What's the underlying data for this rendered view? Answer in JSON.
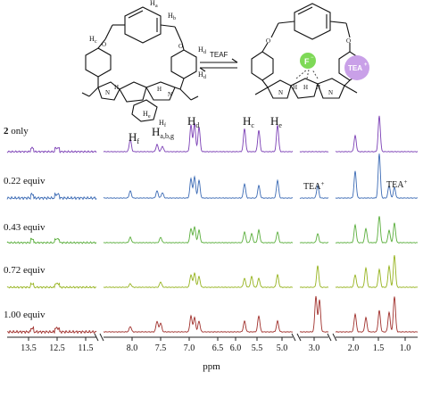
{
  "scheme": {
    "reagent": "TEAF",
    "fluoride_label": "F",
    "fluoride_charge": "−",
    "cation_label": "TEA",
    "cation_charge": "+",
    "atom_labels": [
      "H",
      "H",
      "H",
      "H",
      "H",
      "H",
      "H",
      "H",
      "H",
      "H",
      "H",
      "H",
      "N",
      "N",
      "N",
      "N",
      "O",
      "O",
      "O",
      "O"
    ],
    "proton_labels": {
      "ha": "a",
      "hb": "b",
      "hc": "c",
      "hd": "d",
      "he": "e",
      "hf": "f"
    },
    "colors": {
      "fluoride": "#7ed957",
      "cation": "#c9a0e8"
    }
  },
  "spectra": {
    "rows": [
      {
        "label_bold": "2",
        "label_rest": " only",
        "color": "#7b3fb5"
      },
      {
        "label_bold": "",
        "label_rest": "0.22 equiv",
        "color": "#3c6bb5"
      },
      {
        "label_bold": "",
        "label_rest": "0.43 equiv",
        "color": "#5aae3c"
      },
      {
        "label_bold": "",
        "label_rest": "0.72 equiv",
        "color": "#96b31e"
      },
      {
        "label_bold": "",
        "label_rest": "1.00 equiv",
        "color": "#a0302c"
      }
    ],
    "peak_labels": [
      {
        "base": "H",
        "sub": "f",
        "sup": ""
      },
      {
        "base": "H",
        "sub": "a,b,g",
        "sup": ""
      },
      {
        "base": "H",
        "sub": "d",
        "sup": ""
      },
      {
        "base": "H",
        "sub": "c",
        "sup": ""
      },
      {
        "base": "H",
        "sub": "e",
        "sup": ""
      },
      {
        "base": "TEA",
        "sub": "",
        "sup": "+"
      },
      {
        "base": "TEA",
        "sub": "",
        "sup": "+"
      }
    ],
    "x_axis": {
      "label": "ppm",
      "ticks": [
        "13.5",
        "12.5",
        "11.5",
        "8.0",
        "7.5",
        "7.0",
        "6.5",
        "6.0",
        "5.5",
        "5.0",
        "3.0",
        "2.0",
        "1.5",
        "1.0"
      ]
    }
  }
}
